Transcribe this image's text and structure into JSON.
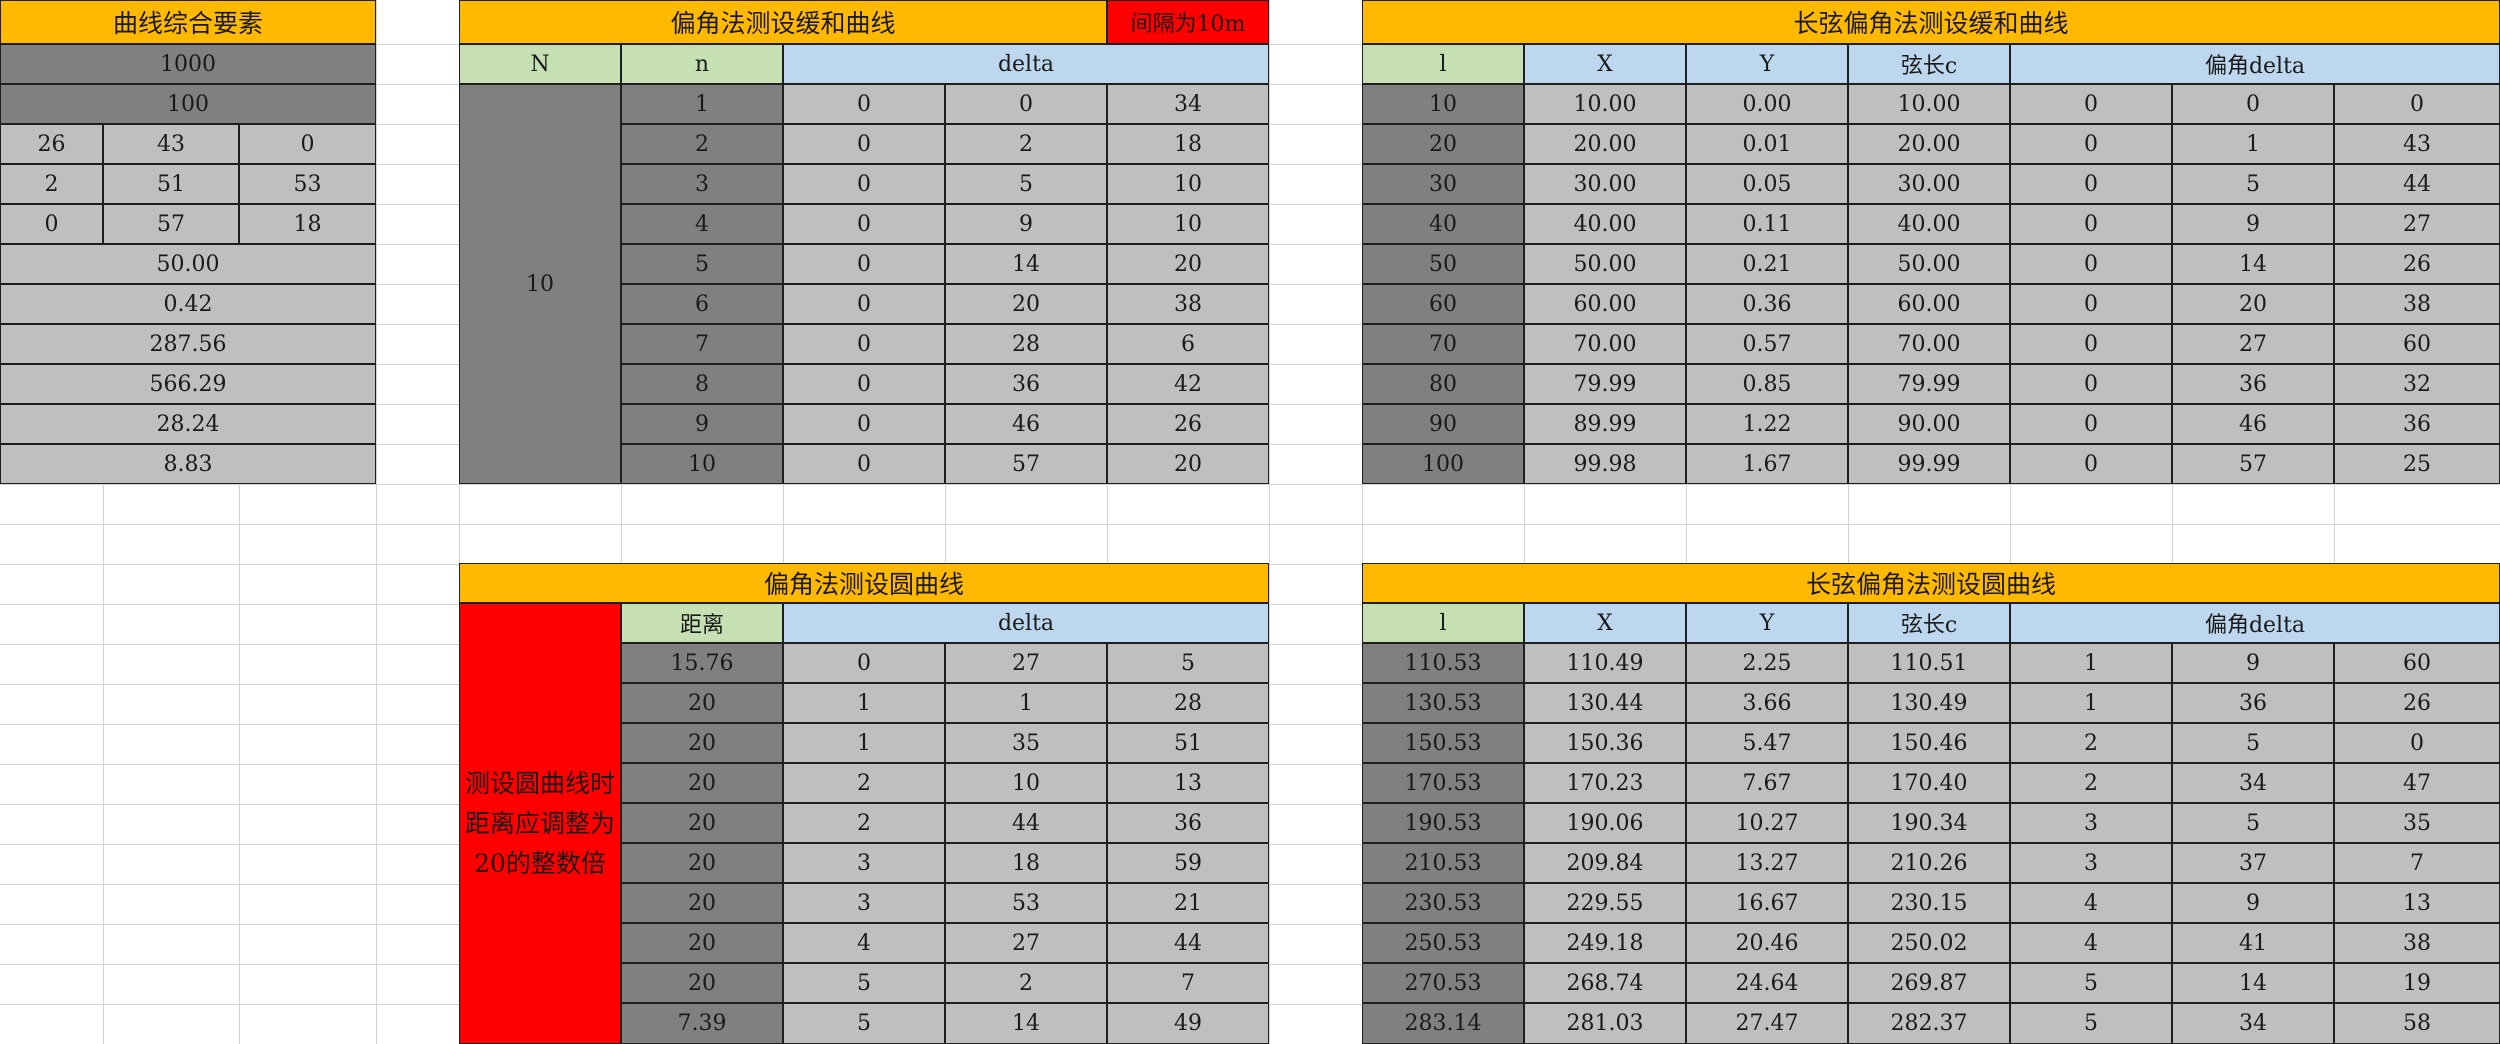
{
  "curve_elements": {
    "title": "曲线综合要素",
    "single_values": [
      "1000",
      "100"
    ],
    "angle_rows": [
      [
        "26",
        "43",
        "0"
      ],
      [
        "2",
        "51",
        "53"
      ],
      [
        "0",
        "57",
        "18"
      ]
    ],
    "lower_values": [
      "50.00",
      "0.42",
      "287.56",
      "566.29",
      "28.24",
      "8.83"
    ]
  },
  "deflection_transition": {
    "title": "偏角法测设缓和曲线",
    "interval_note": "间隔为10m",
    "headers": {
      "N": "N",
      "n": "n",
      "delta": "delta"
    },
    "N_value": "10",
    "rows": [
      [
        "1",
        "0",
        "0",
        "34"
      ],
      [
        "2",
        "0",
        "2",
        "18"
      ],
      [
        "3",
        "0",
        "5",
        "10"
      ],
      [
        "4",
        "0",
        "9",
        "10"
      ],
      [
        "5",
        "0",
        "14",
        "20"
      ],
      [
        "6",
        "0",
        "20",
        "38"
      ],
      [
        "7",
        "0",
        "28",
        "6"
      ],
      [
        "8",
        "0",
        "36",
        "42"
      ],
      [
        "9",
        "0",
        "46",
        "26"
      ],
      [
        "10",
        "0",
        "57",
        "20"
      ]
    ]
  },
  "long_chord_transition": {
    "title": "长弦偏角法测设缓和曲线",
    "headers": {
      "l": "l",
      "x": "X",
      "y": "Y",
      "chord": "弦长c",
      "delta": "偏角delta"
    },
    "rows": [
      [
        "10",
        "10.00",
        "0.00",
        "10.00",
        "0",
        "0",
        "0"
      ],
      [
        "20",
        "20.00",
        "0.01",
        "20.00",
        "0",
        "1",
        "43"
      ],
      [
        "30",
        "30.00",
        "0.05",
        "30.00",
        "0",
        "5",
        "44"
      ],
      [
        "40",
        "40.00",
        "0.11",
        "40.00",
        "0",
        "9",
        "27"
      ],
      [
        "50",
        "50.00",
        "0.21",
        "50.00",
        "0",
        "14",
        "26"
      ],
      [
        "60",
        "60.00",
        "0.36",
        "60.00",
        "0",
        "20",
        "38"
      ],
      [
        "70",
        "70.00",
        "0.57",
        "70.00",
        "0",
        "27",
        "60"
      ],
      [
        "80",
        "79.99",
        "0.85",
        "79.99",
        "0",
        "36",
        "32"
      ],
      [
        "90",
        "89.99",
        "1.22",
        "90.00",
        "0",
        "46",
        "36"
      ],
      [
        "100",
        "99.98",
        "1.67",
        "99.99",
        "0",
        "57",
        "25"
      ]
    ]
  },
  "deflection_circular": {
    "title": "偏角法测设圆曲线",
    "headers": {
      "distance": "距离",
      "delta": "delta"
    },
    "note": "测设圆曲线时距离应调整为20的整数倍",
    "rows": [
      [
        "15.76",
        "0",
        "27",
        "5"
      ],
      [
        "20",
        "1",
        "1",
        "28"
      ],
      [
        "20",
        "1",
        "35",
        "51"
      ],
      [
        "20",
        "2",
        "10",
        "13"
      ],
      [
        "20",
        "2",
        "44",
        "36"
      ],
      [
        "20",
        "3",
        "18",
        "59"
      ],
      [
        "20",
        "3",
        "53",
        "21"
      ],
      [
        "20",
        "4",
        "27",
        "44"
      ],
      [
        "20",
        "5",
        "2",
        "7"
      ],
      [
        "7.39",
        "5",
        "14",
        "49"
      ]
    ]
  },
  "long_chord_circular": {
    "title": "长弦偏角法测设圆曲线",
    "headers": {
      "l": "l",
      "x": "X",
      "y": "Y",
      "chord": "弦长c",
      "delta": "偏角delta"
    },
    "rows": [
      [
        "110.53",
        "110.49",
        "2.25",
        "110.51",
        "1",
        "9",
        "60"
      ],
      [
        "130.53",
        "130.44",
        "3.66",
        "130.49",
        "1",
        "36",
        "26"
      ],
      [
        "150.53",
        "150.36",
        "5.47",
        "150.46",
        "2",
        "5",
        "0"
      ],
      [
        "170.53",
        "170.23",
        "7.67",
        "170.40",
        "2",
        "34",
        "47"
      ],
      [
        "190.53",
        "190.06",
        "10.27",
        "190.34",
        "3",
        "5",
        "35"
      ],
      [
        "210.53",
        "209.84",
        "13.27",
        "210.26",
        "3",
        "37",
        "7"
      ],
      [
        "230.53",
        "229.55",
        "16.67",
        "230.15",
        "4",
        "9",
        "13"
      ],
      [
        "250.53",
        "249.18",
        "20.46",
        "250.02",
        "4",
        "41",
        "38"
      ],
      [
        "270.53",
        "268.74",
        "24.64",
        "269.87",
        "5",
        "14",
        "19"
      ],
      [
        "283.14",
        "281.03",
        "27.47",
        "282.37",
        "5",
        "34",
        "58"
      ]
    ]
  }
}
